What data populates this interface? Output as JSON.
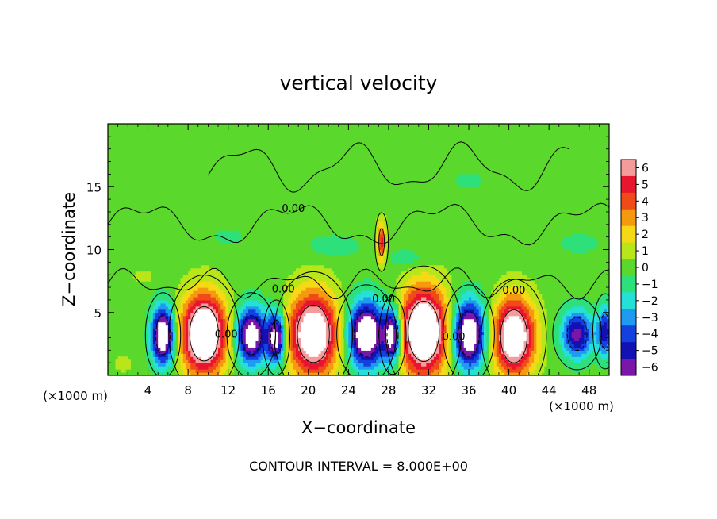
{
  "chart_data": {
    "type": "heatmap",
    "title": "vertical velocity",
    "xlabel": "X−coordinate",
    "ylabel": "Z−coordinate",
    "x_unit_left": "(×1000 m)",
    "x_unit_right": "(×1000 m)",
    "xlim": [
      0,
      50
    ],
    "ylim": [
      0,
      20
    ],
    "x_ticks": [
      4,
      8,
      12,
      16,
      20,
      24,
      28,
      32,
      36,
      40,
      44,
      48
    ],
    "y_ticks": [
      5,
      10,
      15
    ],
    "colorbar": {
      "levels": [
        6,
        5,
        4,
        3,
        2,
        1,
        0,
        -1,
        -2,
        -3,
        -4,
        -5,
        -6
      ],
      "level_labels": [
        "6",
        "5",
        "4",
        "3",
        "2",
        "1",
        "0",
        "−1",
        "−2",
        "−3",
        "−4",
        "−5",
        "−6"
      ],
      "colors": [
        "#f49b9b",
        "#e8152e",
        "#f04a18",
        "#f59a10",
        "#f5d915",
        "#b8e61a",
        "#5ad82b",
        "#2ee07a",
        "#25e0d6",
        "#1e9bf0",
        "#1440e0",
        "#1212b4",
        "#7a16a8"
      ]
    },
    "contour_labels": [
      "0.00",
      "0.00",
      "0.00",
      "0.00",
      "0.00",
      "0.00"
    ],
    "contour_interval_text": "CONTOUR INTERVAL = 8.000E+00",
    "background_value": 0,
    "features": [
      {
        "kind": "updraft",
        "x": 9.6,
        "z": 3.3,
        "rx": 2.6,
        "rz": 3.6,
        "peak": 10
      },
      {
        "kind": "updraft",
        "x": 20.5,
        "z": 3.3,
        "rx": 2.9,
        "rz": 3.8,
        "peak": 9
      },
      {
        "kind": "updraft",
        "x": 31.5,
        "z": 3.5,
        "rx": 2.8,
        "rz": 4.0,
        "peak": 10
      },
      {
        "kind": "updraft",
        "x": 40.5,
        "z": 3.1,
        "rx": 2.4,
        "rz": 3.5,
        "peak": 9
      },
      {
        "kind": "downdraft",
        "x": 5.5,
        "z": 3.2,
        "rx": 1.3,
        "rz": 2.6,
        "peak": -9
      },
      {
        "kind": "downdraft",
        "x": 14.3,
        "z": 3.2,
        "rx": 1.8,
        "rz": 2.6,
        "peak": -8
      },
      {
        "kind": "downdraft",
        "x": 16.8,
        "z": 3.0,
        "rx": 1.0,
        "rz": 2.3,
        "peak": -8
      },
      {
        "kind": "downdraft",
        "x": 25.8,
        "z": 3.3,
        "rx": 2.2,
        "rz": 3.0,
        "peak": -9
      },
      {
        "kind": "downdraft",
        "x": 28.4,
        "z": 3.2,
        "rx": 1.0,
        "rz": 2.4,
        "peak": -8
      },
      {
        "kind": "downdraft",
        "x": 36.0,
        "z": 3.3,
        "rx": 1.9,
        "rz": 3.0,
        "peak": -9
      },
      {
        "kind": "downdraft",
        "x": 46.8,
        "z": 3.3,
        "rx": 1.8,
        "rz": 2.2,
        "peak": -6
      },
      {
        "kind": "downdraft",
        "x": 49.6,
        "z": 3.5,
        "rx": 0.9,
        "rz": 2.3,
        "peak": -5
      },
      {
        "kind": "updraft",
        "x": 27.3,
        "z": 10.6,
        "rx": 0.5,
        "rz": 1.8,
        "peak": 5
      },
      {
        "kind": "updraft",
        "x": 3.5,
        "z": 7.9,
        "rx": 1.5,
        "rz": 0.8,
        "peak": 0.8
      },
      {
        "kind": "updraft",
        "x": 1.5,
        "z": 0.9,
        "rx": 1.2,
        "rz": 0.8,
        "peak": 1.0
      },
      {
        "kind": "downdraft",
        "x": 22.5,
        "z": 10.3,
        "rx": 3.0,
        "rz": 1.0,
        "peak": -1.3
      },
      {
        "kind": "downdraft",
        "x": 30.0,
        "z": 9.3,
        "rx": 2.5,
        "rz": 1.0,
        "peak": -1.2
      },
      {
        "kind": "downdraft",
        "x": 12.0,
        "z": 11.0,
        "rx": 2.5,
        "rz": 1.2,
        "peak": -0.7
      },
      {
        "kind": "downdraft",
        "x": 36.0,
        "z": 15.5,
        "rx": 3.5,
        "rz": 1.5,
        "peak": -0.6
      },
      {
        "kind": "downdraft",
        "x": 47.0,
        "z": 10.5,
        "rx": 3.0,
        "rz": 1.2,
        "peak": -0.8
      }
    ]
  }
}
